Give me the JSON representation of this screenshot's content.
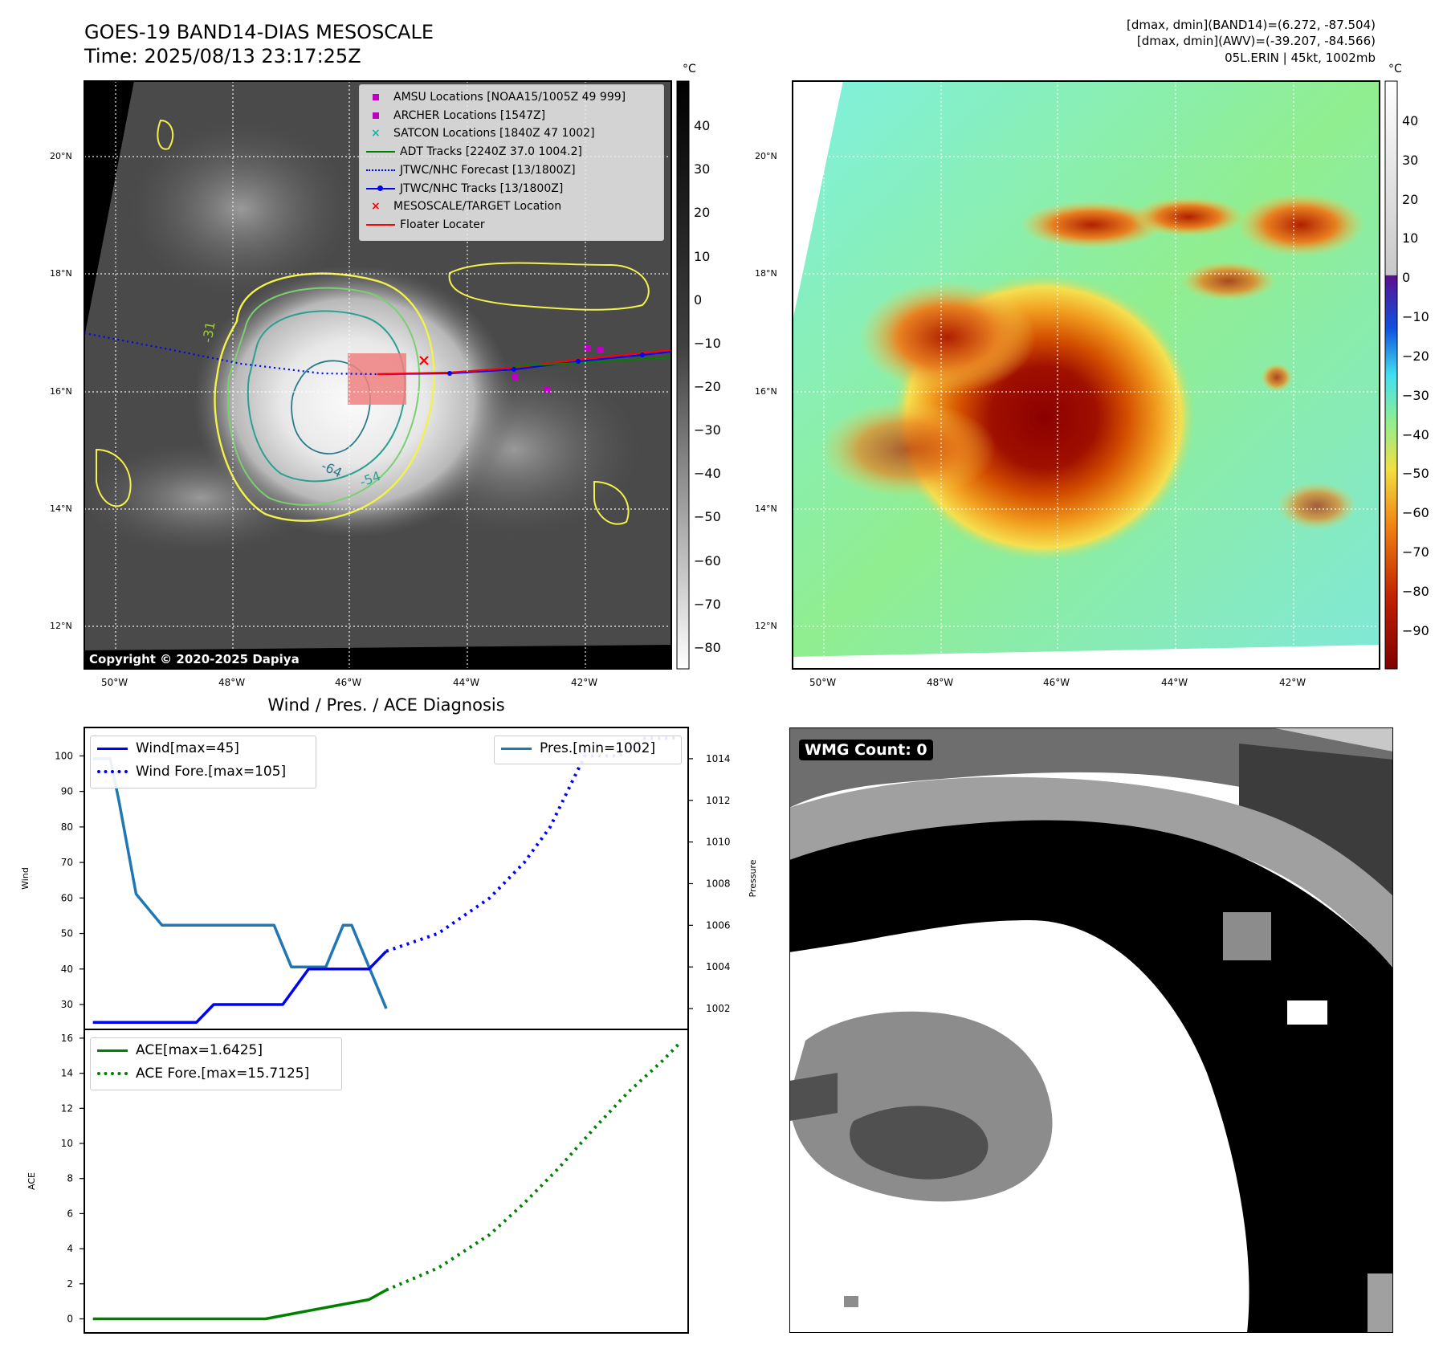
{
  "header": {
    "title_line1": "GOES-19 BAND14-DIAS MESOSCALE",
    "title_line2": "Time: 2025/08/13 23:17:25Z",
    "stats_line1": "[dmax, dmin](BAND14)=(6.272, -87.504)",
    "stats_line2": "[dmax, dmin](AWV)=(-39.207, -84.566)",
    "stats_line3": "05L.ERIN | 45kt, 1002mb"
  },
  "colors": {
    "amsu": "#c000c0",
    "archer": "#c000c0",
    "satcon": "#20b2aa",
    "adt": "#008000",
    "forecast": "#0000ff",
    "tracks": "#0000ff",
    "target": "#ff0000",
    "floater": "#ff0000",
    "pressure": "#1f77b4",
    "ace": "#008000"
  },
  "map": {
    "lat_labels": [
      "20°N",
      "18°N",
      "16°N",
      "14°N",
      "12°N"
    ],
    "lon_labels": [
      "50°W",
      "48°W",
      "46°W",
      "44°W",
      "42°W"
    ],
    "copyright": "Copyright © 2020-2025 Dapiya",
    "contour_labels": [
      "-31",
      "-64",
      "-54"
    ],
    "legend": [
      {
        "label": "AMSU Locations [NOAA15/1005Z 49 999]",
        "icon": "square-marker"
      },
      {
        "label": "ARCHER Locations [1547Z]",
        "icon": "square-marker"
      },
      {
        "label": "SATCON Locations [1840Z 47 1002]",
        "icon": "x-marker"
      },
      {
        "label": "ADT Tracks [2240Z 37.0 1004.2]",
        "icon": "line"
      },
      {
        "label": "JTWC/NHC Forecast [13/1800Z]",
        "icon": "dotted-line"
      },
      {
        "label": "JTWC/NHC Tracks [13/1800Z]",
        "icon": "line-dot"
      },
      {
        "label": "MESOSCALE/TARGET Location",
        "icon": "x-marker"
      },
      {
        "label": "Floater Locater",
        "icon": "line"
      }
    ]
  },
  "colorbar_left": {
    "unit": "°C",
    "ticks": [
      "40",
      "30",
      "20",
      "10",
      "0",
      "−10",
      "−20",
      "−30",
      "−40",
      "−50",
      "−60",
      "−70",
      "−80"
    ]
  },
  "colorbar_right": {
    "unit": "°C",
    "ticks": [
      "40",
      "30",
      "20",
      "10",
      "0",
      "−10",
      "−20",
      "−30",
      "−40",
      "−50",
      "−60",
      "−70",
      "−80",
      "−90"
    ]
  },
  "wmg": {
    "label": "WMG Count: 0"
  },
  "chart_data": [
    {
      "type": "line",
      "title": "Wind / Pres. / ACE Diagnosis",
      "ylabel": "Wind",
      "ylabel_right": "Pressure",
      "ylim": [
        23,
        108
      ],
      "y2lim": [
        1001,
        1015.5
      ],
      "yticks": [
        30,
        40,
        50,
        60,
        70,
        80,
        90,
        100
      ],
      "y2ticks": [
        1002,
        1004,
        1006,
        1008,
        1010,
        1012,
        1014
      ],
      "legend_left": [
        "Wind[max=45]",
        "Wind Fore.[max=105]"
      ],
      "legend_right": [
        "Pres.[min=1002]"
      ],
      "series": [
        {
          "name": "Wind[max=45]",
          "axis": "left",
          "style": "solid",
          "x": [
            0,
            3,
            8,
            12,
            14,
            17,
            22,
            25,
            28,
            32,
            34
          ],
          "values": [
            25,
            25,
            25,
            25,
            30,
            30,
            30,
            40,
            40,
            40,
            45
          ]
        },
        {
          "name": "Wind Fore.[max=105]",
          "axis": "left",
          "style": "dotted",
          "x": [
            34,
            40,
            46,
            50,
            53,
            55,
            57,
            61,
            64,
            68
          ],
          "values": [
            45,
            50,
            60,
            70,
            80,
            90,
            100,
            100,
            105,
            105
          ]
        },
        {
          "name": "Pres.[min=1002]",
          "axis": "right",
          "style": "solid",
          "x": [
            0,
            2,
            3,
            5,
            8,
            10,
            13,
            17,
            20,
            21,
            23,
            24,
            25,
            27,
            29,
            30,
            32,
            34
          ],
          "values": [
            1014,
            1014,
            1012,
            1007.5,
            1006,
            1006,
            1006,
            1006,
            1006,
            1006,
            1004,
            1004,
            1004,
            1004,
            1006,
            1006,
            1004,
            1002
          ]
        }
      ]
    },
    {
      "type": "line",
      "ylabel": "ACE",
      "ylim": [
        -0.8,
        16.5
      ],
      "yticks": [
        0,
        2,
        4,
        6,
        8,
        10,
        12,
        14,
        16
      ],
      "legend": [
        "ACE[max=1.6425]",
        "ACE Fore.[max=15.7125]"
      ],
      "series": [
        {
          "name": "ACE[max=1.6425]",
          "style": "solid",
          "x": [
            0,
            4,
            8,
            12,
            16,
            20,
            24,
            28,
            32,
            34
          ],
          "values": [
            0,
            0,
            0,
            0,
            0,
            0,
            0.37,
            0.74,
            1.1,
            1.6425
          ]
        },
        {
          "name": "ACE Fore.[max=15.7125]",
          "style": "dotted",
          "x": [
            34,
            40,
            46,
            50,
            54,
            58,
            62,
            66,
            68
          ],
          "values": [
            1.6425,
            2.9,
            4.8,
            6.6,
            8.6,
            10.8,
            12.9,
            14.7,
            15.7125
          ]
        }
      ]
    }
  ]
}
